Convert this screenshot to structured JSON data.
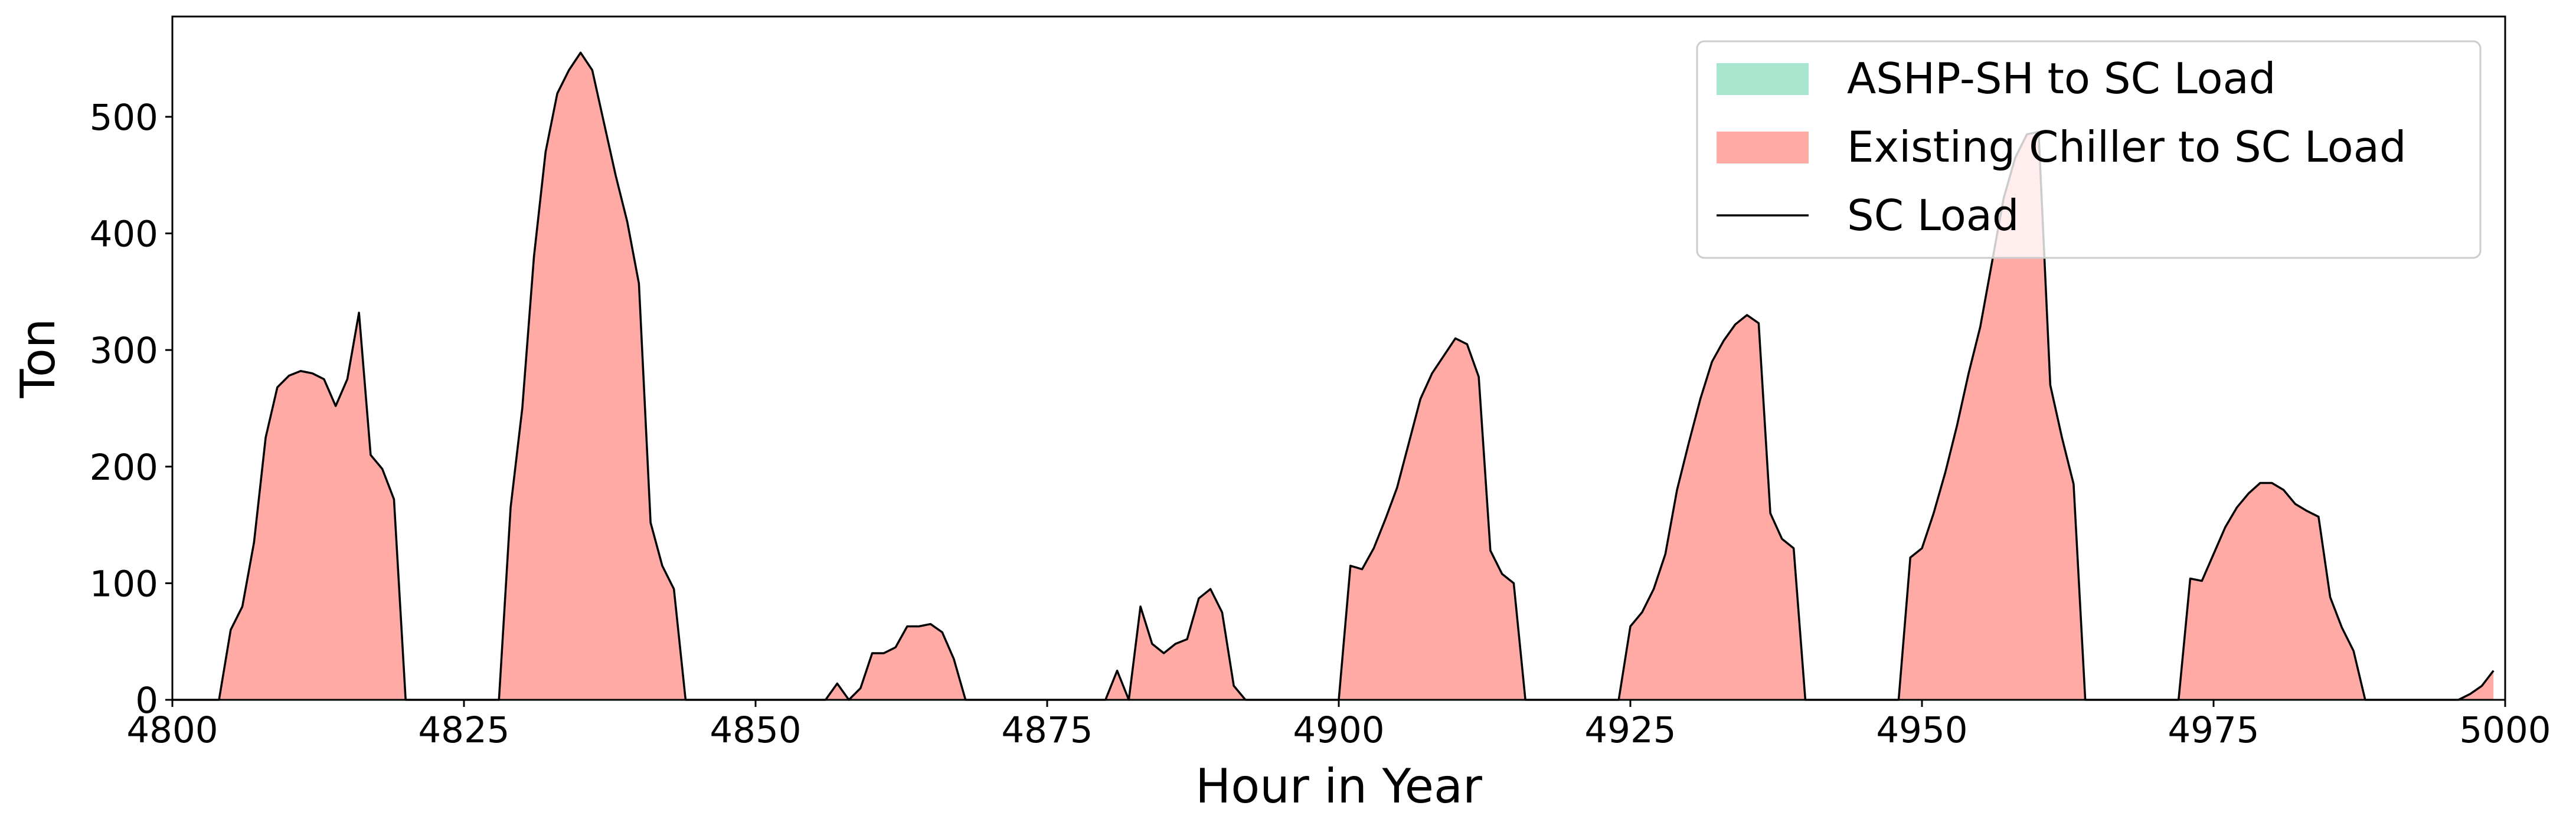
{
  "chart_data": {
    "type": "stacked_area",
    "xlabel": "Hour in Year",
    "ylabel": "Ton",
    "xlim": [
      4800,
      5000
    ],
    "ylim": [
      0,
      586
    ],
    "xticks": [
      4800,
      4825,
      4850,
      4875,
      4900,
      4925,
      4950,
      4975,
      5000
    ],
    "yticks": [
      0,
      100,
      200,
      300,
      400,
      500
    ],
    "legend": "upper right",
    "x": [
      4800,
      4801,
      4802,
      4803,
      4804,
      4805,
      4806,
      4807,
      4808,
      4809,
      4810,
      4811,
      4812,
      4813,
      4814,
      4815,
      4816,
      4817,
      4818,
      4819,
      4820,
      4821,
      4822,
      4823,
      4824,
      4825,
      4826,
      4827,
      4828,
      4829,
      4830,
      4831,
      4832,
      4833,
      4834,
      4835,
      4836,
      4837,
      4838,
      4839,
      4840,
      4841,
      4842,
      4843,
      4844,
      4845,
      4846,
      4847,
      4848,
      4849,
      4850,
      4851,
      4852,
      4853,
      4854,
      4855,
      4856,
      4857,
      4858,
      4859,
      4860,
      4861,
      4862,
      4863,
      4864,
      4865,
      4866,
      4867,
      4868,
      4869,
      4870,
      4871,
      4872,
      4873,
      4874,
      4875,
      4876,
      4877,
      4878,
      4879,
      4880,
      4881,
      4882,
      4883,
      4884,
      4885,
      4886,
      4887,
      4888,
      4889,
      4890,
      4891,
      4892,
      4893,
      4894,
      4895,
      4896,
      4897,
      4898,
      4899,
      4900,
      4901,
      4902,
      4903,
      4904,
      4905,
      4906,
      4907,
      4908,
      4909,
      4910,
      4911,
      4912,
      4913,
      4914,
      4915,
      4916,
      4917,
      4918,
      4919,
      4920,
      4921,
      4922,
      4923,
      4924,
      4925,
      4926,
      4927,
      4928,
      4929,
      4930,
      4931,
      4932,
      4933,
      4934,
      4935,
      4936,
      4937,
      4938,
      4939,
      4940,
      4941,
      4942,
      4943,
      4944,
      4945,
      4946,
      4947,
      4948,
      4949,
      4950,
      4951,
      4952,
      4953,
      4954,
      4955,
      4956,
      4957,
      4958,
      4959,
      4960,
      4961,
      4962,
      4963,
      4964,
      4965,
      4966,
      4967,
      4968,
      4969,
      4970,
      4971,
      4972,
      4973,
      4974,
      4975,
      4976,
      4977,
      4978,
      4979,
      4980,
      4981,
      4982,
      4983,
      4984,
      4985,
      4986,
      4987,
      4988,
      4989,
      4990,
      4991,
      4992,
      4993,
      4994,
      4995,
      4996,
      4997,
      4998,
      4999
    ],
    "series": [
      {
        "name": "ASHP-SH to SC Load",
        "color": "#a8e6cf",
        "kind": "area",
        "values": [
          0,
          0,
          0,
          0,
          0,
          0,
          0,
          0,
          0,
          0,
          0,
          0,
          0,
          0,
          0,
          0,
          0,
          0,
          0,
          0,
          0,
          0,
          0,
          0,
          0,
          0,
          0,
          0,
          0,
          0,
          0,
          0,
          0,
          0,
          0,
          0,
          0,
          0,
          0,
          0,
          0,
          0,
          0,
          0,
          0,
          0,
          0,
          0,
          0,
          0,
          0,
          0,
          0,
          0,
          0,
          0,
          0,
          0,
          0,
          0,
          0,
          0,
          0,
          0,
          0,
          0,
          0,
          0,
          0,
          0,
          0,
          0,
          0,
          0,
          0,
          0,
          0,
          0,
          0,
          0,
          0,
          0,
          0,
          0,
          0,
          0,
          0,
          0,
          0,
          0,
          0,
          0,
          0,
          0,
          0,
          0,
          0,
          0,
          0,
          0,
          0,
          0,
          0,
          0,
          0,
          0,
          0,
          0,
          0,
          0,
          0,
          0,
          0,
          0,
          0,
          0,
          0,
          0,
          0,
          0,
          0,
          0,
          0,
          0,
          0,
          0,
          0,
          0,
          0,
          0,
          0,
          0,
          0,
          0,
          0,
          0,
          0,
          0,
          0,
          0,
          0,
          0,
          0,
          0,
          0,
          0,
          0,
          0,
          0,
          0,
          0,
          0,
          0,
          0,
          0,
          0,
          0,
          0,
          0,
          0,
          0,
          0,
          0,
          0,
          0,
          0,
          0,
          0,
          0,
          0,
          0,
          0,
          0,
          0,
          0,
          0,
          0,
          0,
          0,
          0,
          0,
          0,
          0,
          0,
          0,
          0,
          0,
          0,
          0,
          0,
          0,
          0,
          0,
          0,
          0,
          0,
          0,
          0,
          0,
          0
        ]
      },
      {
        "name": "Existing Chiller to SC Load",
        "color": "#ffaaa5",
        "kind": "area",
        "values": [
          0,
          0,
          0,
          0,
          0,
          60,
          80,
          135,
          225,
          268,
          278,
          282,
          280,
          275,
          252,
          275,
          332,
          210,
          198,
          172,
          0,
          0,
          0,
          0,
          0,
          0,
          0,
          0,
          0,
          165,
          250,
          380,
          470,
          520,
          540,
          555,
          540,
          495,
          450,
          410,
          357,
          152,
          115,
          95,
          0,
          0,
          0,
          0,
          0,
          0,
          0,
          0,
          0,
          0,
          0,
          0,
          0,
          14,
          0,
          10,
          40,
          40,
          45,
          63,
          63,
          65,
          58,
          35,
          0,
          0,
          0,
          0,
          0,
          0,
          0,
          0,
          0,
          0,
          0,
          0,
          0,
          25,
          0,
          80,
          48,
          40,
          48,
          52,
          87,
          95,
          75,
          12,
          0,
          0,
          0,
          0,
          0,
          0,
          0,
          0,
          0,
          115,
          112,
          130,
          155,
          182,
          220,
          258,
          280,
          295,
          310,
          305,
          277,
          128,
          108,
          100,
          0,
          0,
          0,
          0,
          0,
          0,
          0,
          0,
          0,
          63,
          75,
          95,
          125,
          180,
          220,
          258,
          290,
          308,
          322,
          330,
          323,
          160,
          138,
          130,
          0,
          0,
          0,
          0,
          0,
          0,
          0,
          0,
          0,
          122,
          130,
          160,
          195,
          235,
          280,
          320,
          375,
          430,
          465,
          485,
          487,
          270,
          225,
          185,
          0,
          0,
          0,
          0,
          0,
          0,
          0,
          0,
          0,
          104,
          102,
          125,
          148,
          165,
          177,
          186,
          186,
          180,
          168,
          162,
          157,
          88,
          62,
          42,
          0,
          0,
          0,
          0,
          0,
          0,
          0,
          0,
          0,
          5,
          12,
          25
        ]
      },
      {
        "name": "SC Load",
        "color": "#000000",
        "kind": "line",
        "values": [
          0,
          0,
          0,
          0,
          0,
          60,
          80,
          135,
          225,
          268,
          278,
          282,
          280,
          275,
          252,
          275,
          332,
          210,
          198,
          172,
          0,
          0,
          0,
          0,
          0,
          0,
          0,
          0,
          0,
          165,
          250,
          380,
          470,
          520,
          540,
          555,
          540,
          495,
          450,
          410,
          357,
          152,
          115,
          95,
          0,
          0,
          0,
          0,
          0,
          0,
          0,
          0,
          0,
          0,
          0,
          0,
          0,
          14,
          0,
          10,
          40,
          40,
          45,
          63,
          63,
          65,
          58,
          35,
          0,
          0,
          0,
          0,
          0,
          0,
          0,
          0,
          0,
          0,
          0,
          0,
          0,
          25,
          0,
          80,
          48,
          40,
          48,
          52,
          87,
          95,
          75,
          12,
          0,
          0,
          0,
          0,
          0,
          0,
          0,
          0,
          0,
          115,
          112,
          130,
          155,
          182,
          220,
          258,
          280,
          295,
          310,
          305,
          277,
          128,
          108,
          100,
          0,
          0,
          0,
          0,
          0,
          0,
          0,
          0,
          0,
          63,
          75,
          95,
          125,
          180,
          220,
          258,
          290,
          308,
          322,
          330,
          323,
          160,
          138,
          130,
          0,
          0,
          0,
          0,
          0,
          0,
          0,
          0,
          0,
          122,
          130,
          160,
          195,
          235,
          280,
          320,
          375,
          430,
          465,
          485,
          487,
          270,
          225,
          185,
          0,
          0,
          0,
          0,
          0,
          0,
          0,
          0,
          0,
          104,
          102,
          125,
          148,
          165,
          177,
          186,
          186,
          180,
          168,
          162,
          157,
          88,
          62,
          42,
          0,
          0,
          0,
          0,
          0,
          0,
          0,
          0,
          0,
          5,
          12,
          25
        ]
      }
    ]
  }
}
